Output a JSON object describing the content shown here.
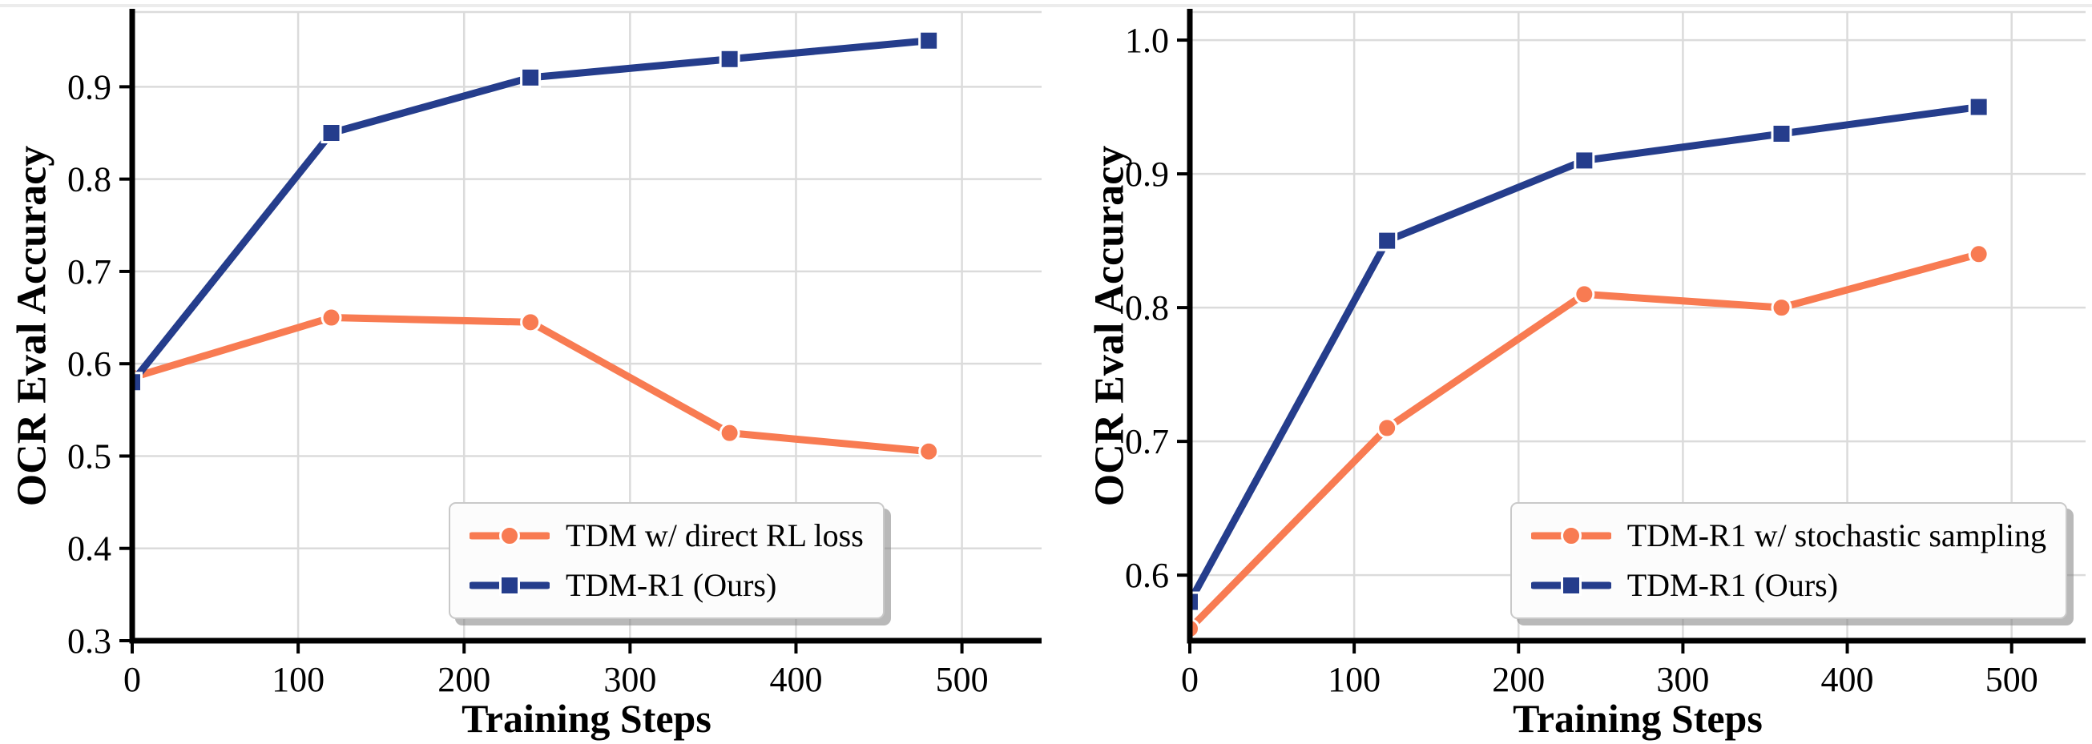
{
  "figure": {
    "background": "#ffffff",
    "grid_color": "#dbdbdb",
    "spine_color": "#000000",
    "legend_background": "#fcfcfc",
    "legend_border_color": "#c9c9c9"
  },
  "chart_data": [
    {
      "type": "line",
      "title": "",
      "xlabel": "Training Steps",
      "ylabel": "OCR Eval Accuracy",
      "x": [
        0,
        120,
        240,
        360,
        480
      ],
      "xticks": [
        0,
        100,
        200,
        300,
        400,
        500
      ],
      "yticks": [
        "0.3",
        "0.4",
        "0.5",
        "0.6",
        "0.7",
        "0.8",
        "0.9"
      ],
      "xlim": [
        0,
        548
      ],
      "ylim": [
        0.3,
        0.981
      ],
      "grid": true,
      "legend_position": "lower right",
      "series": [
        {
          "name": "TDM w/ direct RL loss",
          "color": "#F87B52",
          "marker": "circle",
          "values": [
            0.585,
            0.65,
            0.645,
            0.525,
            0.505
          ]
        },
        {
          "name": "TDM-R1 (Ours)",
          "color": "#253D8C",
          "marker": "square",
          "values": [
            0.58,
            0.85,
            0.91,
            0.93,
            0.95
          ]
        }
      ]
    },
    {
      "type": "line",
      "title": "",
      "xlabel": "Training Steps",
      "ylabel": "OCR Eval Accuracy",
      "x": [
        0,
        120,
        240,
        360,
        480
      ],
      "xticks": [
        0,
        100,
        200,
        300,
        400,
        500
      ],
      "yticks": [
        "0.6",
        "0.7",
        "0.8",
        "0.9",
        "1.0"
      ],
      "xlim": [
        0,
        545
      ],
      "ylim": [
        0.551,
        1.021
      ],
      "grid": true,
      "legend_position": "lower right",
      "series": [
        {
          "name": "TDM-R1 w/ stochastic sampling",
          "color": "#F87B52",
          "marker": "circle",
          "values": [
            0.56,
            0.71,
            0.81,
            0.8,
            0.84
          ]
        },
        {
          "name": "TDM-R1 (Ours)",
          "color": "#253D8C",
          "marker": "square",
          "values": [
            0.58,
            0.85,
            0.91,
            0.93,
            0.95
          ]
        }
      ]
    }
  ]
}
